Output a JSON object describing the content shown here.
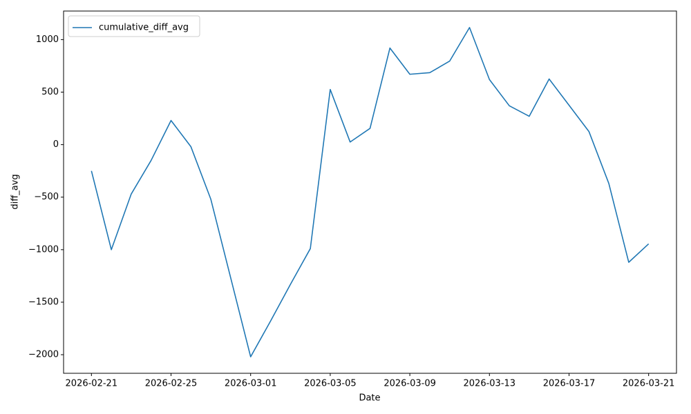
{
  "chart_data": {
    "type": "line",
    "xlabel": "Date",
    "ylabel": "diff_avg",
    "x": [
      "2026-02-21",
      "2026-02-22",
      "2026-02-23",
      "2026-02-24",
      "2026-02-25",
      "2026-02-26",
      "2026-02-27",
      "2026-02-28",
      "2026-03-01",
      "2026-03-02",
      "2026-03-03",
      "2026-03-04",
      "2026-03-05",
      "2026-03-06",
      "2026-03-07",
      "2026-03-08",
      "2026-03-09",
      "2026-03-10",
      "2026-03-11",
      "2026-03-12",
      "2026-03-13",
      "2026-03-14",
      "2026-03-15",
      "2026-03-16",
      "2026-03-17",
      "2026-03-18",
      "2026-03-19",
      "2026-03-20",
      "2026-03-21"
    ],
    "series": [
      {
        "name": "cumulative_diff_avg",
        "color": "#1f77b4",
        "values": [
          -250,
          -1000,
          -470,
          -150,
          230,
          -20,
          -520,
          -1270,
          -2020,
          -1680,
          -1330,
          -990,
          525,
          25,
          155,
          920,
          670,
          685,
          795,
          1115,
          620,
          370,
          270,
          625,
          375,
          125,
          -370,
          -1120,
          -945
        ]
      }
    ],
    "xlim": [
      "2026-02-19T14:24:00Z",
      "2026-03-22T09:36:00Z"
    ],
    "xticks": [
      "2026-02-21",
      "2026-02-25",
      "2026-03-01",
      "2026-03-05",
      "2026-03-09",
      "2026-03-13",
      "2026-03-17",
      "2026-03-21"
    ],
    "ylim": [
      -2177,
      1272
    ],
    "yticks": [
      {
        "value": -2000,
        "label": "−2000"
      },
      {
        "value": -1500,
        "label": "−1500"
      },
      {
        "value": -1000,
        "label": "−1000"
      },
      {
        "value": -500,
        "label": "−500"
      },
      0,
      500,
      1000
    ],
    "legend": "upper left"
  }
}
